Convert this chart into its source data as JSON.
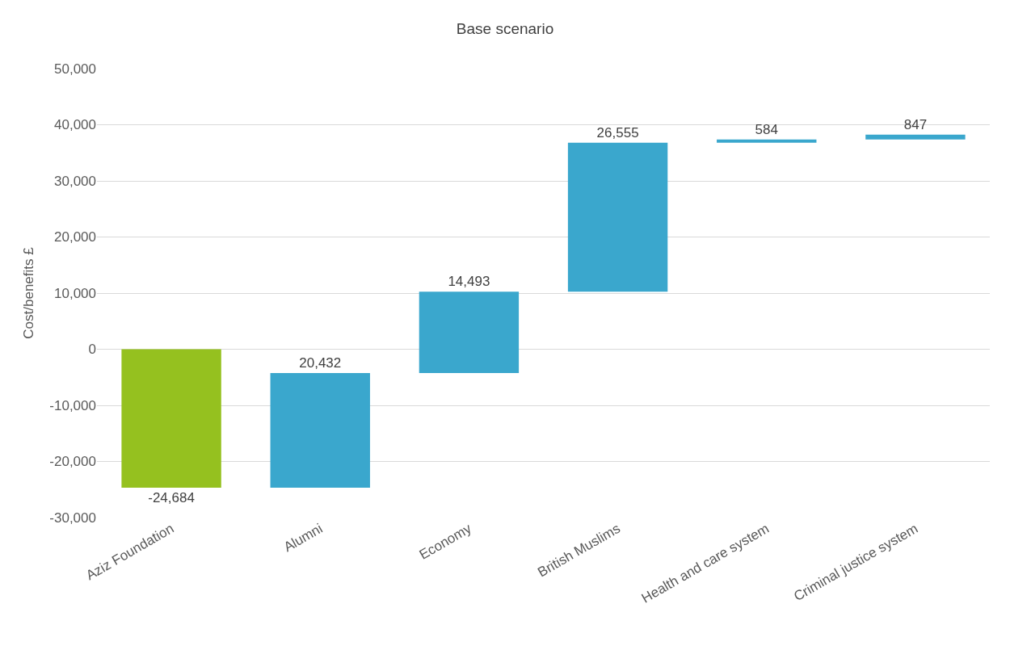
{
  "chart_data": {
    "type": "bar",
    "title": "Base scenario",
    "ylabel": "Cost/benefits £",
    "categories": [
      "Aziz Foundation",
      "Alumni",
      "Economy",
      "British Muslims",
      "Health and care system",
      "Criminal justice system"
    ],
    "values": [
      -24684,
      20432,
      14493,
      26555,
      584,
      847
    ],
    "base": [
      0,
      -24684,
      -4252,
      10241,
      36796,
      37380
    ],
    "colors": [
      "#95c11f",
      "#3aa7cd",
      "#3aa7cd",
      "#3aa7cd",
      "#3aa7cd",
      "#3aa7cd"
    ],
    "ylim": [
      -30000,
      50000
    ],
    "yticks": [
      {
        "value": -30000,
        "label": "-30,000"
      },
      {
        "value": -20000,
        "label": "-20,000"
      },
      {
        "value": -10000,
        "label": "-10,000"
      },
      0,
      {
        "value": 10000,
        "label": "10,000"
      },
      {
        "value": 20000,
        "label": "20,000"
      },
      {
        "value": 30000,
        "label": "30,000"
      },
      {
        "value": 40000,
        "label": "40,000"
      },
      {
        "value": 50000,
        "label": "50,000"
      }
    ],
    "value_labels": [
      "-24,684",
      "20,432",
      "14,493",
      "26,555",
      "584",
      "847"
    ],
    "grid": "y"
  }
}
